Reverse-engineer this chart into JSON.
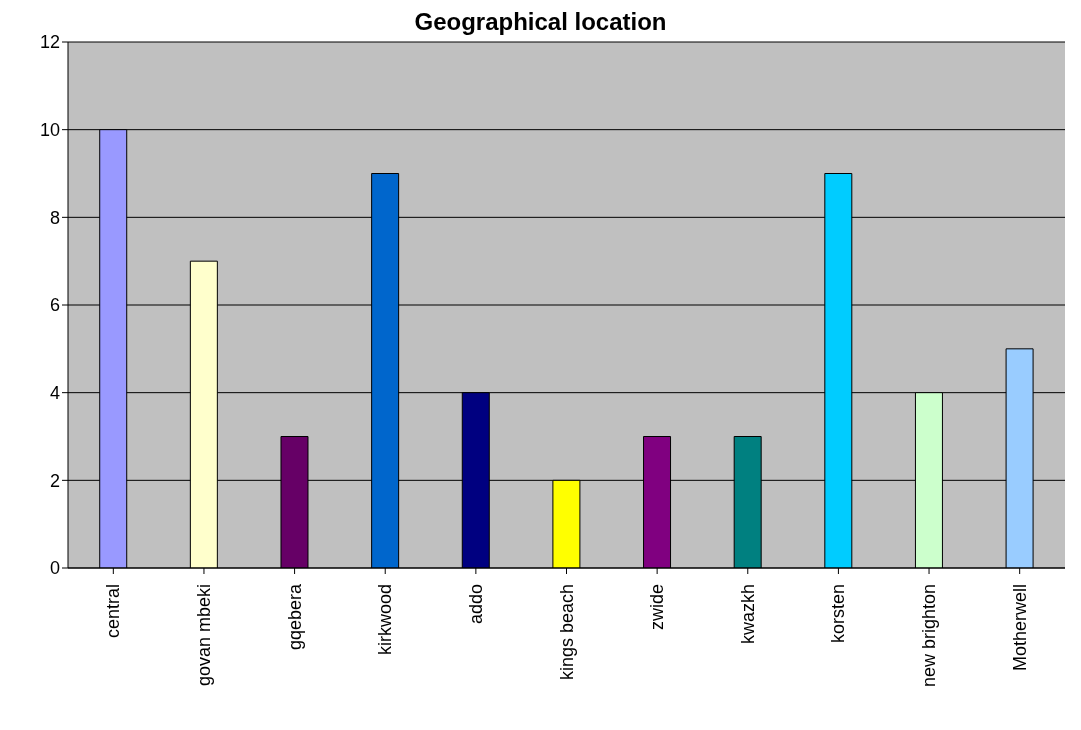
{
  "chart_data": {
    "type": "bar",
    "title": "Geographical location",
    "categories": [
      "central",
      "govan mbeki",
      "gqebera",
      "kirkwood",
      "addo",
      "kings beach",
      "zwide",
      "kwazkh",
      "korsten",
      "new brighton",
      "Motherwell"
    ],
    "values": [
      10,
      7,
      3,
      9,
      4,
      2,
      3,
      3,
      9,
      4,
      5
    ],
    "colors": [
      "#9999ff",
      "#ffffcc",
      "#660066",
      "#0066cc",
      "#000080",
      "#ffff00",
      "#800080",
      "#008080",
      "#00ccff",
      "#ccffcc",
      "#99ccff"
    ],
    "ylim": [
      0,
      12
    ],
    "yticks": [
      0,
      2,
      4,
      6,
      8,
      10,
      12
    ],
    "grid": "y",
    "legend": false
  }
}
